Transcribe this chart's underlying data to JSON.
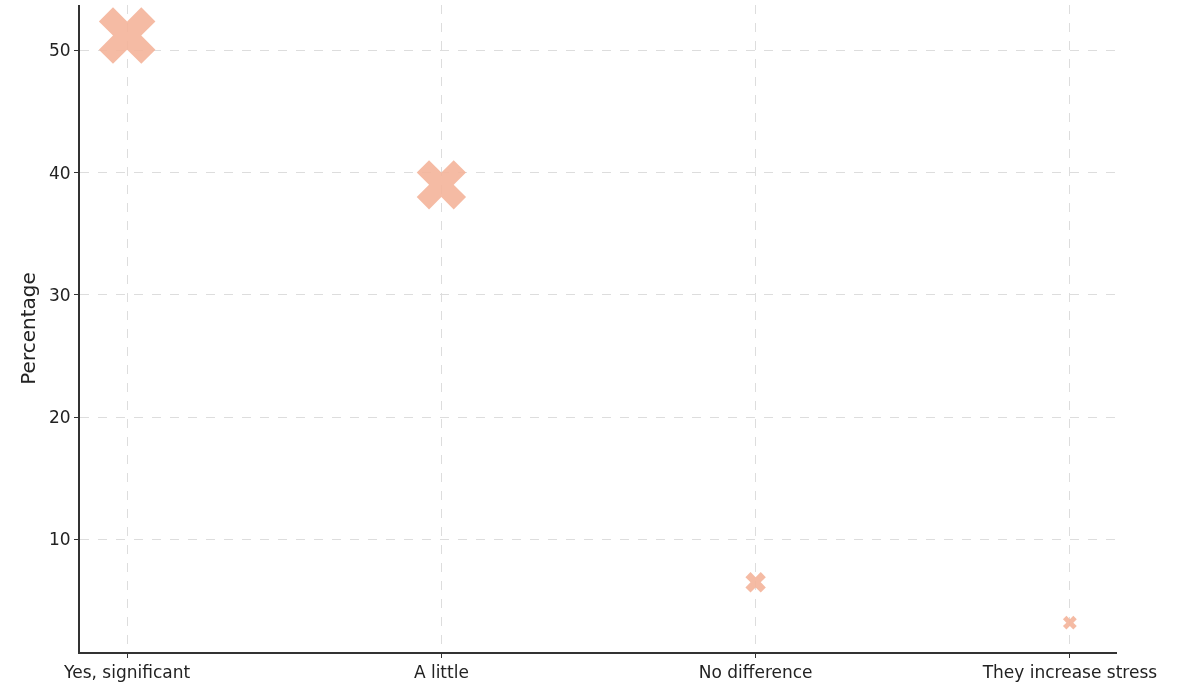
{
  "chart_data": {
    "type": "bubble",
    "ylabel": "Percentage",
    "categories": [
      "Yes, significant",
      "A little",
      "No difference",
      "They increase stress"
    ],
    "values": [
      51.2,
      39,
      6.5,
      3.2
    ],
    "sizes": [
      1,
      0.76,
      0.13,
      0.06
    ],
    "color": "#f4b49a",
    "marker": "cross",
    "ylim": [
      0.8,
      53.7
    ],
    "yticks": [
      10,
      20,
      30,
      40,
      50
    ],
    "grid": true
  }
}
